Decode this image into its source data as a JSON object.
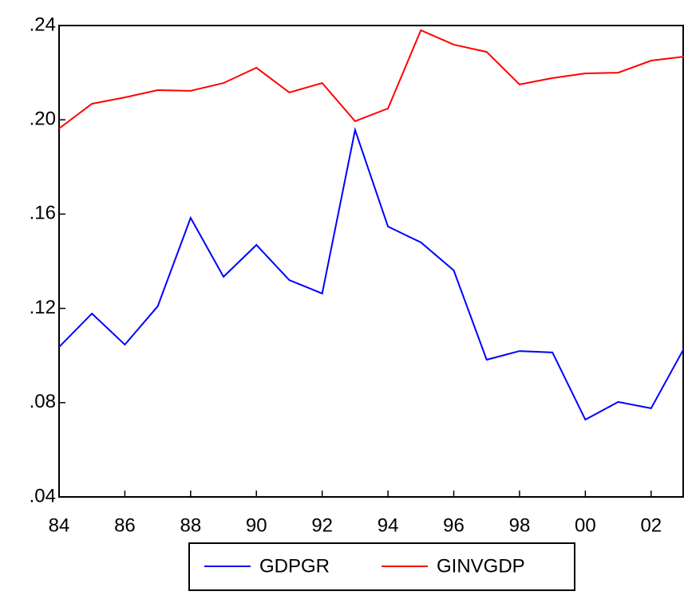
{
  "chart_data": {
    "type": "line",
    "x": [
      1984,
      1985,
      1986,
      1987,
      1988,
      1989,
      1990,
      1991,
      1992,
      1993,
      1994,
      1995,
      1996,
      1997,
      1998,
      1999,
      2000,
      2001,
      2002,
      2003
    ],
    "series": [
      {
        "name": "GDPGR",
        "color": "#0000ff",
        "values": [
          0.1036,
          0.1178,
          0.1046,
          0.1209,
          0.1584,
          0.1334,
          0.1469,
          0.132,
          0.1263,
          0.1957,
          0.1547,
          0.148,
          0.1361,
          0.0982,
          0.1019,
          0.1013,
          0.0728,
          0.0803,
          0.0776,
          0.103
        ]
      },
      {
        "name": "GINVGDP",
        "color": "#ff0000",
        "values": [
          0.1963,
          0.2068,
          0.2095,
          0.2126,
          0.2123,
          0.2156,
          0.2221,
          0.2116,
          0.2156,
          0.1994,
          0.2048,
          0.238,
          0.2319,
          0.2288,
          0.215,
          0.2177,
          0.2197,
          0.22,
          0.2251,
          0.2268
        ]
      }
    ],
    "xlim": [
      1984,
      2003
    ],
    "xticks": [
      {
        "value": 1984,
        "label": "84"
      },
      {
        "value": 1986,
        "label": "86"
      },
      {
        "value": 1988,
        "label": "88"
      },
      {
        "value": 1990,
        "label": "90"
      },
      {
        "value": 1992,
        "label": "92"
      },
      {
        "value": 1994,
        "label": "94"
      },
      {
        "value": 1996,
        "label": "96"
      },
      {
        "value": 1998,
        "label": "98"
      },
      {
        "value": 2000,
        "label": "00"
      },
      {
        "value": 2002,
        "label": "02"
      }
    ],
    "ylim": [
      0.04,
      0.24
    ],
    "yticks": [
      {
        "value": 0.04,
        "label": ".04"
      },
      {
        "value": 0.08,
        "label": ".08"
      },
      {
        "value": 0.12,
        "label": ".12"
      },
      {
        "value": 0.16,
        "label": ".16"
      },
      {
        "value": 0.2,
        "label": ".20"
      },
      {
        "value": 0.24,
        "label": ".24"
      }
    ],
    "legend": "bottom"
  }
}
